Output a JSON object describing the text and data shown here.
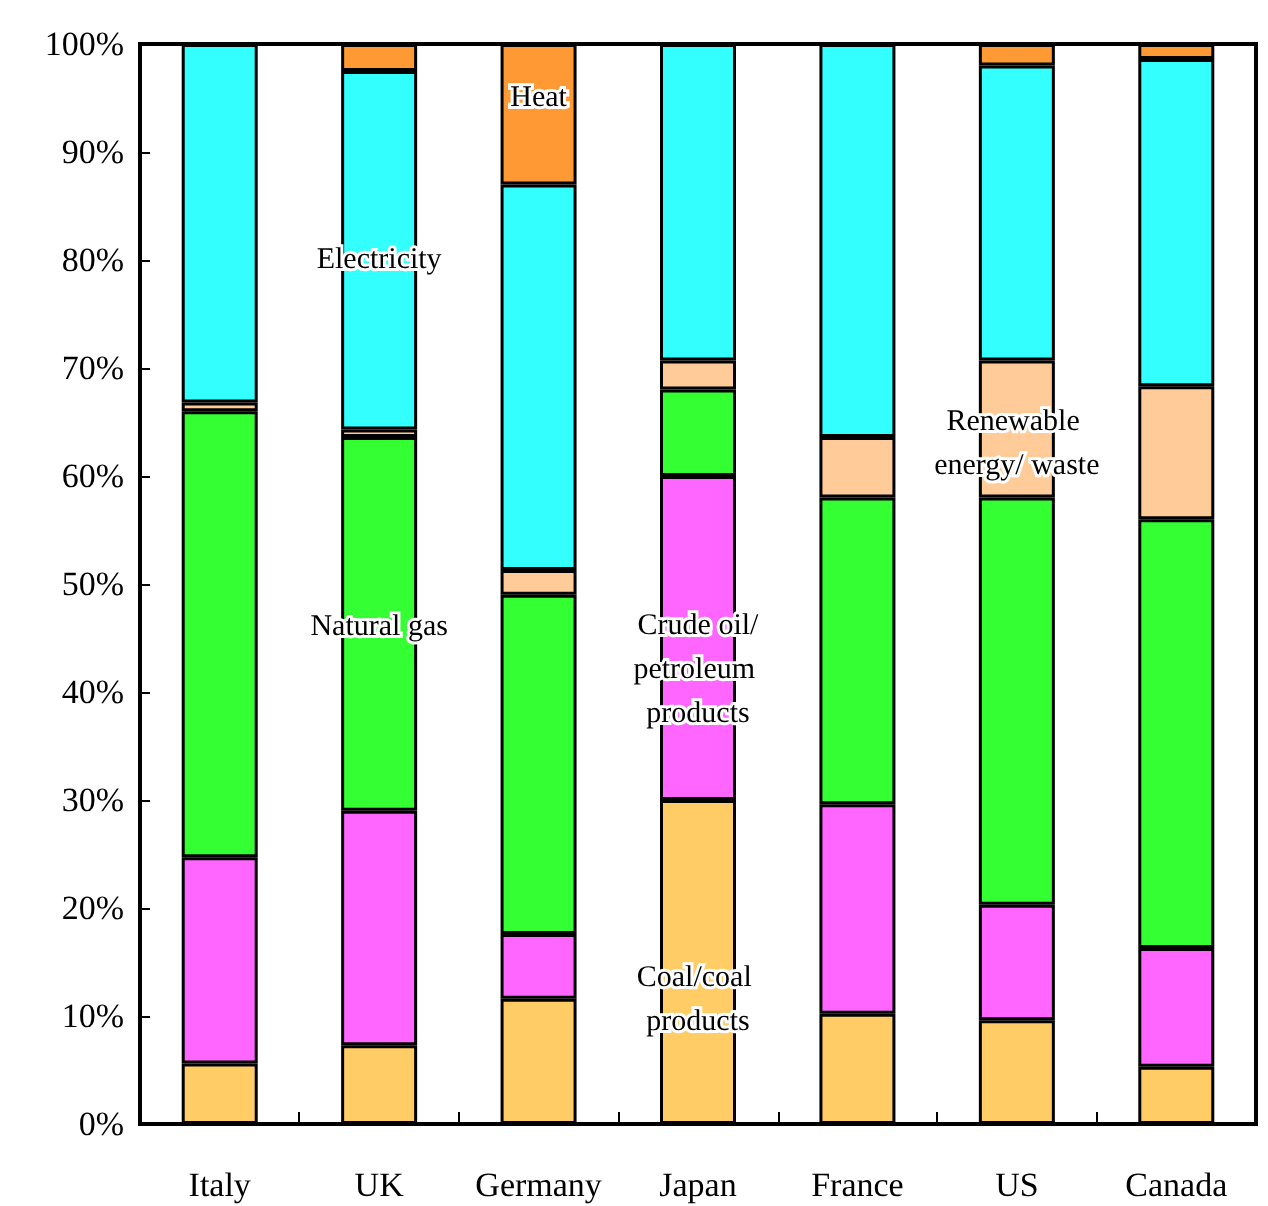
{
  "chart_data": {
    "type": "bar",
    "stacked": true,
    "categories": [
      "Italy",
      "UK",
      "Germany",
      "Japan",
      "France",
      "US",
      "Canada"
    ],
    "series": [
      {
        "name": "Coal/coal products",
        "color": "#ffcc66",
        "values": [
          5.6,
          7.3,
          11.6,
          30,
          10.2,
          9.6,
          5.3
        ]
      },
      {
        "name": "Crude oil/petroleum products",
        "color": "#ff66ff",
        "values": [
          19.1,
          21.7,
          6,
          30,
          19.4,
          10.7,
          11
        ]
      },
      {
        "name": "Natural gas",
        "color": "#33ff33",
        "values": [
          41.3,
          34.6,
          31.4,
          8,
          28.4,
          37.7,
          39.7
        ]
      },
      {
        "name": "Renewable energy/ waste",
        "color": "#ffcc99",
        "values": [
          0.8,
          0.7,
          2.3,
          2.7,
          5.6,
          12.7,
          12.3
        ]
      },
      {
        "name": "Electricity",
        "color": "#33ffff",
        "values": [
          33.2,
          33.2,
          35.7,
          29.3,
          36.4,
          27.3,
          30.3
        ]
      },
      {
        "name": "Heat",
        "color": "#ff9933",
        "values": [
          0,
          2.5,
          13,
          0,
          0,
          2,
          1.4
        ]
      }
    ],
    "ylim": [
      0,
      100
    ],
    "yticks": [
      {
        "value": 0,
        "label": "0%"
      },
      {
        "value": 10,
        "label": "10%"
      },
      {
        "value": 20,
        "label": "20%"
      },
      {
        "value": 30,
        "label": "30%"
      },
      {
        "value": 40,
        "label": "40%"
      },
      {
        "value": 50,
        "label": "50%"
      },
      {
        "value": 60,
        "label": "60%"
      },
      {
        "value": 70,
        "label": "70%"
      },
      {
        "value": 80,
        "label": "80%"
      },
      {
        "value": 90,
        "label": "90%"
      },
      {
        "value": 100,
        "label": "100%"
      }
    ],
    "grid": false,
    "legend": false
  }
}
